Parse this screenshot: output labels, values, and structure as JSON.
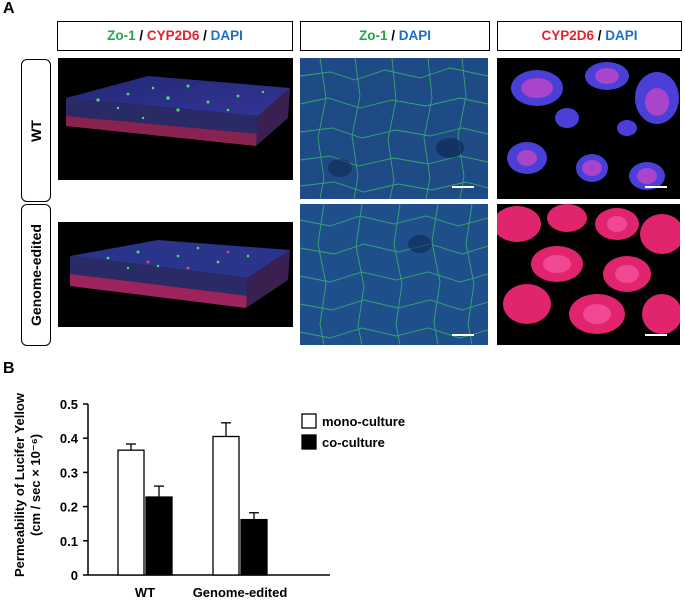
{
  "panel_a": {
    "letter": "A",
    "headers": {
      "col1": {
        "zo1": "Zo-1",
        "sep1": " / ",
        "cyp": "CYP2D6",
        "sep2": " / ",
        "dapi": "DAPI"
      },
      "col2": {
        "zo1": "Zo-1",
        "sep": " / ",
        "dapi": "DAPI"
      },
      "col3": {
        "cyp": "CYP2D6",
        "sep": " / ",
        "dapi": "DAPI"
      }
    },
    "rows": [
      "WT",
      "Genome-edited"
    ]
  },
  "panel_b": {
    "letter": "B",
    "ylabel_line1": "Permeability of Lucifer Yellow",
    "ylabel_line2": "(cm / sec × 10⁻⁶)",
    "legend": [
      "mono-culture",
      "co-culture"
    ]
  },
  "colors": {
    "zo1": "#22a84a",
    "cyp2d6": "#e8202a",
    "dapi": "#1f6fc4"
  },
  "chart_data": {
    "type": "bar",
    "categories": [
      "WT",
      "Genome-edited"
    ],
    "series": [
      {
        "name": "mono-culture",
        "values": [
          0.365,
          0.405
        ],
        "errors": [
          0.018,
          0.04
        ],
        "fill": "#ffffff"
      },
      {
        "name": "co-culture",
        "values": [
          0.228,
          0.162
        ],
        "errors": [
          0.032,
          0.02
        ],
        "fill": "#000000"
      }
    ],
    "ylabel": "Permeability of Lucifer Yellow (cm / sec × 10⁻⁶)",
    "ylim": [
      0,
      0.5
    ],
    "yticks": [
      0,
      0.1,
      0.2,
      0.3,
      0.4,
      0.5
    ],
    "ytick_labels": [
      "0",
      "0.1",
      "0.2",
      "0.3",
      "0.4",
      "0.5"
    ],
    "legend_position": "top-right",
    "grid": false
  }
}
